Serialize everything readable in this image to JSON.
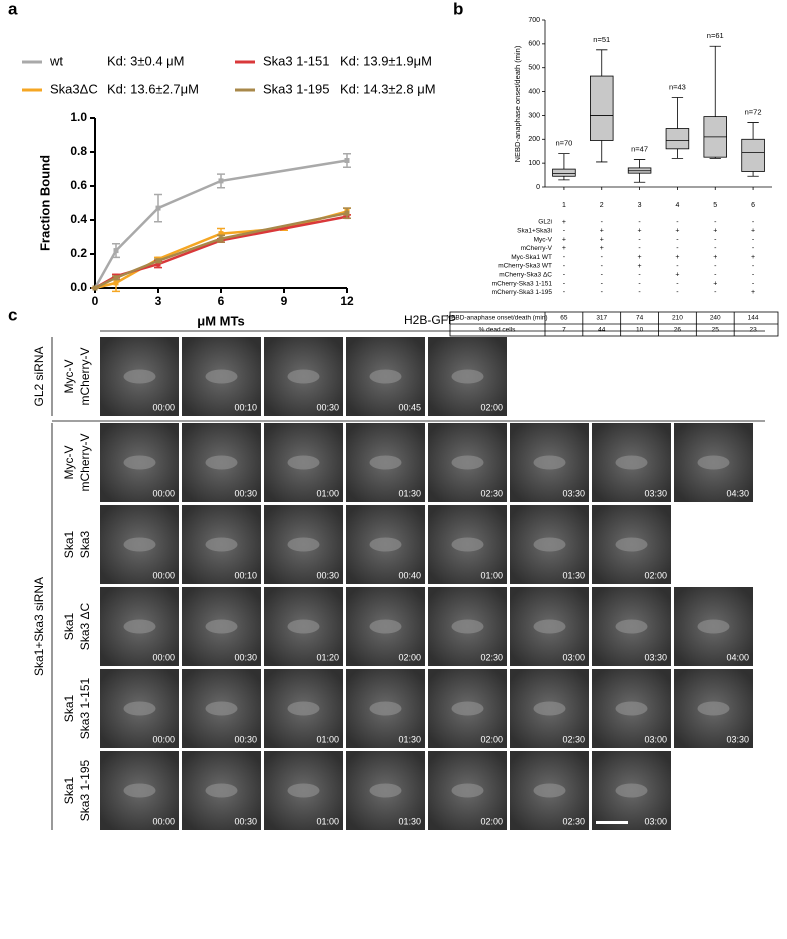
{
  "panel_labels": [
    "a",
    "b",
    "c"
  ],
  "chart_data": [
    {
      "type": "line",
      "ylabel": "Fraction Bound",
      "xlabel": "μM MTs",
      "xlim": [
        0,
        12
      ],
      "xticks": [
        0,
        3,
        6,
        9,
        12
      ],
      "ylim": [
        0,
        1
      ],
      "yticks": [
        {
          "value": 0,
          "label": "0.0"
        },
        {
          "value": 0.2,
          "label": "0.2"
        },
        {
          "value": 0.4,
          "label": "0.4"
        },
        {
          "value": 0.6,
          "label": "0.6"
        },
        {
          "value": 0.8,
          "label": "0.8"
        },
        {
          "value": 1,
          "label": "1.0"
        }
      ],
      "series": [
        {
          "name": "wt",
          "kd_label": "Kd: 3±0.4 μM",
          "color": "#a9a9a9",
          "x": [
            0,
            1,
            3,
            6,
            12
          ],
          "values": [
            0,
            0.22,
            0.47,
            0.63,
            0.75
          ],
          "errors": [
            0,
            0.04,
            0.08,
            0.04,
            0.04
          ]
        },
        {
          "name": "Ska3ΔC",
          "kd_label": "Kd: 13.6±2.7μM",
          "color": "#f5a623",
          "x": [
            0,
            1,
            3,
            6,
            9,
            12
          ],
          "values": [
            0,
            0.03,
            0.17,
            0.32,
            0.35,
            0.45
          ],
          "errors": [
            0,
            0.05,
            0.01,
            0.03,
            0.01,
            0.02
          ]
        },
        {
          "name": "Ska3 1-151",
          "kd_label": "Kd: 13.9±1.9μM",
          "color": "#d9383a",
          "x": [
            0,
            1,
            3,
            6,
            12
          ],
          "values": [
            0,
            0.07,
            0.14,
            0.28,
            0.42
          ],
          "errors": [
            0,
            0.01,
            0.02,
            0.01,
            0.01
          ]
        },
        {
          "name": "Ska3 1-195",
          "kd_label": "Kd: 14.3±2.8 μM",
          "color": "#a8884a",
          "x": [
            0,
            1,
            3,
            6,
            12
          ],
          "values": [
            0,
            0.06,
            0.16,
            0.29,
            0.44
          ],
          "errors": [
            0,
            0.01,
            0.01,
            0.02,
            0.03
          ]
        }
      ]
    },
    {
      "type": "box",
      "ylabel": "NEBD-anaphase onset/death (min)",
      "color": "#c8c8c8",
      "categories": [
        "1",
        "2",
        "3",
        "4",
        "5",
        "6"
      ],
      "ylim": [
        0,
        700
      ],
      "yticks": [
        0,
        100,
        200,
        300,
        400,
        500,
        600,
        700
      ],
      "boxes": [
        {
          "min": 30,
          "q1": 45,
          "median": 57,
          "q3": 75,
          "max": 140
        },
        {
          "min": 105,
          "q1": 195,
          "median": 300,
          "q3": 465,
          "max": 575
        },
        {
          "min": 20,
          "q1": 58,
          "median": 68,
          "q3": 80,
          "max": 115
        },
        {
          "min": 120,
          "q1": 160,
          "median": 195,
          "q3": 245,
          "max": 375
        },
        {
          "min": 120,
          "q1": 125,
          "median": 210,
          "q3": 295,
          "max": 590
        },
        {
          "min": 45,
          "q1": 65,
          "median": 145,
          "q3": 200,
          "max": 270
        }
      ],
      "n_labels": [
        "n=70",
        "n=51",
        "n=47",
        "n=43",
        "n=61",
        "n=72"
      ]
    }
  ],
  "conditions": {
    "rows": [
      {
        "label": "GL2i",
        "marks": [
          "+",
          "-",
          "-",
          "-",
          "-",
          "-"
        ]
      },
      {
        "label": "Ska1+Ska3i",
        "marks": [
          "-",
          "+",
          "+",
          "+",
          "+",
          "+"
        ]
      },
      {
        "label": "Myc-V",
        "marks": [
          "+",
          "+",
          "-",
          "-",
          "-",
          "-"
        ]
      },
      {
        "label": "mCherry-V",
        "marks": [
          "+",
          "+",
          "-",
          "-",
          "-",
          "-"
        ]
      },
      {
        "label": "Myc-Ska1 WT",
        "marks": [
          "-",
          "-",
          "+",
          "+",
          "+",
          "+"
        ]
      },
      {
        "label": "mCherry-Ska3 WT",
        "marks": [
          "-",
          "-",
          "+",
          "-",
          "-",
          "-"
        ]
      },
      {
        "label": "mCherry-Ska3 ΔC",
        "marks": [
          "-",
          "-",
          "-",
          "+",
          "-",
          "-"
        ]
      },
      {
        "label": "mCherry-Ska3 1-151",
        "marks": [
          "-",
          "-",
          "-",
          "-",
          "+",
          "-"
        ]
      },
      {
        "label": "mCherry-Ska3 1-195",
        "marks": [
          "-",
          "-",
          "-",
          "-",
          "-",
          "+"
        ]
      }
    ]
  },
  "summary_table": {
    "rows": [
      {
        "label": "NEBD-anaphase onset/death (min)",
        "cells": [
          "65",
          "317",
          "74",
          "210",
          "240",
          "144"
        ]
      },
      {
        "label": "% dead cells",
        "cells": [
          "7",
          "44",
          "10",
          "26",
          "25",
          "23"
        ]
      }
    ]
  },
  "microscopy": {
    "title": "H2B-GFP",
    "groups": [
      {
        "label": "GL2 siRNA",
        "rows": [
          {
            "labels": [
              "Myc-V",
              "mCherry-V"
            ],
            "times": [
              "00:00",
              "00:10",
              "00:30",
              "00:45",
              "02:00"
            ]
          }
        ]
      },
      {
        "label": "Ska1+Ska3 siRNA",
        "rows": [
          {
            "labels": [
              "Myc-V",
              "mCherry-V"
            ],
            "times": [
              "00:00",
              "00:30",
              "01:00",
              "01:30",
              "02:30",
              "03:30",
              "03:30",
              "04:30"
            ]
          },
          {
            "labels": [
              "Ska1",
              "Ska3"
            ],
            "times": [
              "00:00",
              "00:10",
              "00:30",
              "00:40",
              "01:00",
              "01:30",
              "02:00"
            ]
          },
          {
            "labels": [
              "Ska1",
              "Ska3 ΔC"
            ],
            "times": [
              "00:00",
              "00:30",
              "01:20",
              "02:00",
              "02:30",
              "03:00",
              "03:30",
              "04:00"
            ]
          },
          {
            "labels": [
              "Ska1",
              "Ska3 1-151"
            ],
            "times": [
              "00:00",
              "00:30",
              "01:00",
              "01:30",
              "02:00",
              "02:30",
              "03:00",
              "03:30"
            ]
          },
          {
            "labels": [
              "Ska1",
              "Ska3 1-195"
            ],
            "times": [
              "00:00",
              "00:30",
              "01:00",
              "01:30",
              "02:00",
              "02:30",
              "03:00"
            ]
          }
        ]
      }
    ]
  }
}
